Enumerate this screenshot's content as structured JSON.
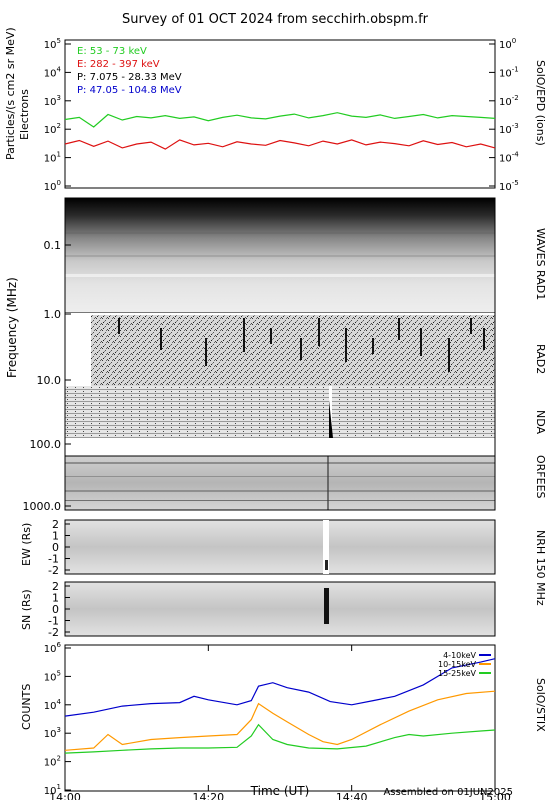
{
  "title": "Survey of 01 OCT 2024 from secchirh.obspm.fr",
  "footer": "Assembled on 01JUN2025",
  "chart_data": [
    {
      "type": "line",
      "instrument": "SolO/EPD (ions)",
      "ylabel_lines": [
        "Particles/(s cm2 sr MeV)",
        "Electrons"
      ],
      "log_scale": true,
      "ylim": [
        1,
        100000
      ],
      "yticks": [
        "10^0",
        "10^1",
        "10^2",
        "10^3",
        "10^4",
        "10^5"
      ],
      "right_ylim": [
        1e-05,
        1
      ],
      "right_yticks": [
        "10^0",
        "10^-1",
        "10^-2",
        "10^-3",
        "10^-4",
        "10^-5"
      ],
      "legend": [
        {
          "label": "E: 53 - 73 keV",
          "color": "#22cc22"
        },
        {
          "label": "E: 282 - 397 keV",
          "color": "#dd1111"
        },
        {
          "label": "P: 7.075 - 28.33 MeV",
          "color": "#000000"
        },
        {
          "label": "P: 47.05 - 104.8 MeV",
          "color": "#0000cc"
        }
      ],
      "series": [
        {
          "name": "E: 53 - 73 keV",
          "color": "#22cc22",
          "x": [
            "14:00",
            "14:02",
            "14:04",
            "14:06",
            "14:08",
            "14:10",
            "14:12",
            "14:14",
            "14:16",
            "14:18",
            "14:20",
            "14:22",
            "14:24",
            "14:26",
            "14:28",
            "14:30",
            "14:32",
            "14:34",
            "14:36",
            "14:38",
            "14:40",
            "14:42",
            "14:44",
            "14:46",
            "14:48",
            "14:50",
            "14:52",
            "14:54",
            "14:56",
            "14:58",
            "15:00"
          ],
          "values": [
            220,
            260,
            120,
            330,
            210,
            280,
            250,
            300,
            240,
            270,
            200,
            260,
            310,
            250,
            230,
            290,
            340,
            250,
            300,
            380,
            290,
            260,
            320,
            240,
            280,
            330,
            250,
            300,
            280,
            260,
            240
          ]
        },
        {
          "name": "E: 282 - 397 keV",
          "color": "#dd1111",
          "x": [
            "14:00",
            "14:02",
            "14:04",
            "14:06",
            "14:08",
            "14:10",
            "14:12",
            "14:14",
            "14:16",
            "14:18",
            "14:20",
            "14:22",
            "14:24",
            "14:26",
            "14:28",
            "14:30",
            "14:32",
            "14:34",
            "14:36",
            "14:38",
            "14:40",
            "14:42",
            "14:44",
            "14:46",
            "14:48",
            "14:50",
            "14:52",
            "14:54",
            "14:56",
            "14:58",
            "15:00"
          ],
          "values": [
            30,
            40,
            25,
            38,
            22,
            30,
            35,
            20,
            42,
            28,
            32,
            24,
            36,
            30,
            27,
            40,
            33,
            26,
            38,
            30,
            42,
            28,
            35,
            31,
            26,
            39,
            29,
            34,
            24,
            30,
            22
          ]
        }
      ]
    },
    {
      "type": "heatmap",
      "instrument": "WAVES RAD1",
      "ylabel": "Frequency (MHz)",
      "yticks": [
        "0.1",
        "1.0"
      ]
    },
    {
      "type": "heatmap",
      "instrument": "RAD2",
      "yticks": [
        "10.0"
      ]
    },
    {
      "type": "heatmap",
      "instrument": "NDA",
      "yticks": [
        "100.0"
      ]
    },
    {
      "type": "heatmap",
      "instrument": "ORFEES",
      "yticks": [
        "1000.0"
      ]
    },
    {
      "type": "heatmap",
      "instrument": "NRH 150 MHz",
      "panels": [
        {
          "ylabel": "EW (Rs)",
          "yticks": [
            "2",
            "1",
            "0",
            "-1",
            "-2"
          ]
        },
        {
          "ylabel": "SN (Rs)",
          "yticks": [
            "2",
            "1",
            "0",
            "-1",
            "-2"
          ]
        }
      ]
    },
    {
      "type": "line",
      "instrument": "SolO/STIX",
      "ylabel": "COUNTS",
      "log_scale": true,
      "ylim": [
        10,
        1000000
      ],
      "yticks": [
        "10^1",
        "10^2",
        "10^3",
        "10^4",
        "10^5",
        "10^6"
      ],
      "xlabel": "Time (UT)",
      "xticks": [
        "14:00",
        "14:20",
        "14:40",
        "15:00"
      ],
      "x_range": [
        "14:00",
        "15:00"
      ],
      "legend": [
        {
          "label": "4-10keV",
          "color": "#0000cc"
        },
        {
          "label": "10-15keV",
          "color": "#ff9900"
        },
        {
          "label": "15-25keV",
          "color": "#22cc22"
        }
      ],
      "series": [
        {
          "name": "4-10keV",
          "color": "#0000cc",
          "x": [
            "14:00",
            "14:04",
            "14:08",
            "14:12",
            "14:16",
            "14:18",
            "14:20",
            "14:24",
            "14:26",
            "14:27",
            "14:29",
            "14:31",
            "14:34",
            "14:37",
            "14:40",
            "14:43",
            "14:46",
            "14:50",
            "14:54",
            "14:58",
            "15:00"
          ],
          "values": [
            4000,
            5500,
            9000,
            11000,
            12000,
            20000,
            15000,
            10000,
            14000,
            45000,
            60000,
            40000,
            28000,
            13000,
            10000,
            14000,
            20000,
            50000,
            200000,
            320000,
            420000
          ]
        },
        {
          "name": "10-15keV",
          "color": "#ff9900",
          "x": [
            "14:00",
            "14:04",
            "14:06",
            "14:08",
            "14:12",
            "14:16",
            "14:20",
            "14:24",
            "14:26",
            "14:27",
            "14:29",
            "14:31",
            "14:34",
            "14:36",
            "14:38",
            "14:40",
            "14:44",
            "14:48",
            "14:52",
            "14:56",
            "15:00"
          ],
          "values": [
            250,
            300,
            900,
            400,
            600,
            700,
            800,
            900,
            3000,
            11000,
            5000,
            2500,
            900,
            500,
            400,
            600,
            2000,
            6000,
            15000,
            25000,
            30000
          ]
        },
        {
          "name": "15-25keV",
          "color": "#22cc22",
          "x": [
            "14:00",
            "14:04",
            "14:08",
            "14:12",
            "14:16",
            "14:20",
            "14:24",
            "14:26",
            "14:27",
            "14:29",
            "14:31",
            "14:34",
            "14:38",
            "14:42",
            "14:46",
            "14:48",
            "14:50",
            "14:54",
            "14:58",
            "15:00"
          ],
          "values": [
            200,
            220,
            250,
            280,
            300,
            300,
            320,
            800,
            2000,
            600,
            400,
            300,
            280,
            350,
            700,
            900,
            800,
            1000,
            1200,
            1300
          ]
        }
      ]
    }
  ]
}
